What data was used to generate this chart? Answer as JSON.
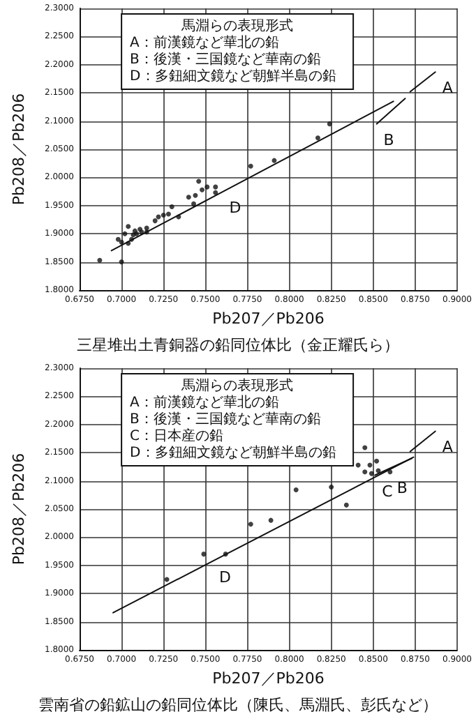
{
  "chart_data": [
    {
      "type": "scatter",
      "title": "三星堆出土青銅器の鉛同位体比（金正耀氏ら）",
      "xlabel": "Pb207／Pb206",
      "ylabel": "Pb208／Pb206",
      "grid": true,
      "line_style": "solid",
      "xlim": [
        0.675,
        0.9
      ],
      "ylim": [
        1.8,
        2.3
      ],
      "xticks": [
        {
          "value": 0.675,
          "label": "0.6750"
        },
        {
          "value": 0.7,
          "label": "0.7000"
        },
        {
          "value": 0.725,
          "label": "0.7250"
        },
        {
          "value": 0.75,
          "label": "0.7500"
        },
        {
          "value": 0.775,
          "label": "0.7750"
        },
        {
          "value": 0.8,
          "label": "0.8000"
        },
        {
          "value": 0.825,
          "label": "0.8250"
        },
        {
          "value": 0.85,
          "label": "0.8500"
        },
        {
          "value": 0.875,
          "label": "0.8750"
        },
        {
          "value": 0.9,
          "label": "0.9000"
        }
      ],
      "yticks": [
        {
          "value": 1.8,
          "label": "1.8000"
        },
        {
          "value": 1.85,
          "label": "1.8500"
        },
        {
          "value": 1.9,
          "label": "1.9000"
        },
        {
          "value": 1.95,
          "label": "1.9500"
        },
        {
          "value": 2.0,
          "label": "2.0000"
        },
        {
          "value": 2.05,
          "label": "2.0500"
        },
        {
          "value": 2.1,
          "label": "2.1000"
        },
        {
          "value": 2.15,
          "label": "2.1500"
        },
        {
          "value": 2.2,
          "label": "2.2000"
        },
        {
          "value": 2.25,
          "label": "2.2500"
        },
        {
          "value": 2.3,
          "label": "2.3000"
        }
      ],
      "series": [
        {
          "color": "#111111",
          "marker": "circle",
          "x": [
            0.687,
            0.7,
            0.698,
            0.7,
            0.702,
            0.704,
            0.707,
            0.708,
            0.709,
            0.711,
            0.712,
            0.704,
            0.706,
            0.715,
            0.715,
            0.72,
            0.722,
            0.725,
            0.728,
            0.73,
            0.734,
            0.74,
            0.743,
            0.744,
            0.746,
            0.748,
            0.751,
            0.756,
            0.756,
            0.777,
            0.791,
            0.817,
            0.824
          ],
          "values": [
            1.853,
            1.85,
            1.89,
            1.885,
            1.9,
            1.913,
            1.898,
            1.905,
            1.9,
            1.908,
            1.903,
            1.883,
            1.89,
            1.91,
            1.903,
            1.923,
            1.93,
            1.933,
            1.935,
            1.948,
            1.93,
            1.965,
            1.953,
            1.968,
            1.993,
            1.978,
            1.983,
            1.983,
            1.973,
            2.02,
            2.03,
            2.07,
            2.095
          ]
        },
        {
          "type": "line",
          "color": "#111111",
          "marker": "none",
          "x": [
            0.694,
            0.76,
            0.862
          ],
          "values": [
            1.87,
            1.974,
            2.135
          ]
        },
        {
          "type": "line",
          "color": "#111111",
          "marker": "none",
          "x": [
            0.872,
            0.887
          ],
          "values": [
            2.152,
            2.187
          ]
        },
        {
          "type": "line",
          "color": "#111111",
          "marker": "none",
          "x": [
            0.852,
            0.869
          ],
          "values": [
            2.095,
            2.14
          ]
        }
      ],
      "annotations": [
        "馬淵らの表現形式",
        "A：前漢鏡など華北の鉛",
        "B：後漢・三国鏡など華南の鉛",
        "D：多鈕細文鏡など朝鮮半島の鉛",
        {
          "text": "A",
          "x": 0.887,
          "y": 2.187
        },
        {
          "text": "B",
          "x": 0.852,
          "y": 2.095
        },
        {
          "text": "D",
          "x": 0.76,
          "y": 1.974
        }
      ]
    },
    {
      "type": "scatter",
      "title": "雲南省の鉛鉱山の鉛同位体比（陳氏、馬淵氏、彭氏など）",
      "xlabel": "Pb207／Pb206",
      "ylabel": "Pb208／Pb206",
      "grid": true,
      "line_style": "solid",
      "xlim": [
        0.675,
        0.9
      ],
      "ylim": [
        1.8,
        2.3
      ],
      "xticks": [
        {
          "value": 0.675,
          "label": "0.6750"
        },
        {
          "value": 0.7,
          "label": "0.7000"
        },
        {
          "value": 0.725,
          "label": "0.7250"
        },
        {
          "value": 0.75,
          "label": "0.7500"
        },
        {
          "value": 0.775,
          "label": "0.7750"
        },
        {
          "value": 0.8,
          "label": "0.8000"
        },
        {
          "value": 0.825,
          "label": "0.8250"
        },
        {
          "value": 0.85,
          "label": "0.8500"
        },
        {
          "value": 0.875,
          "label": "0.8750"
        },
        {
          "value": 0.9,
          "label": "0.9000"
        }
      ],
      "yticks": [
        {
          "value": 1.8,
          "label": "1.8000"
        },
        {
          "value": 1.85,
          "label": "1.8500"
        },
        {
          "value": 1.9,
          "label": "1.9000"
        },
        {
          "value": 1.95,
          "label": "1.9500"
        },
        {
          "value": 2.0,
          "label": "2.0000"
        },
        {
          "value": 2.05,
          "label": "2.0500"
        },
        {
          "value": 2.1,
          "label": "2.1000"
        },
        {
          "value": 2.15,
          "label": "2.1500"
        },
        {
          "value": 2.2,
          "label": "2.2000"
        },
        {
          "value": 2.25,
          "label": "2.2500"
        },
        {
          "value": 2.3,
          "label": "2.3000"
        }
      ],
      "series": [
        {
          "color": "#111111",
          "marker": "circle",
          "x": [
            0.727,
            0.749,
            0.762,
            0.777,
            0.789,
            0.804,
            0.825,
            0.834,
            0.845,
            0.841,
            0.848,
            0.852,
            0.845,
            0.853,
            0.86,
            0.849
          ],
          "values": [
            1.925,
            1.97,
            1.97,
            2.023,
            2.03,
            2.084,
            2.089,
            2.057,
            2.159,
            2.128,
            2.128,
            2.135,
            2.116,
            2.118,
            2.116,
            2.113
          ]
        },
        {
          "type": "line",
          "color": "#111111",
          "marker": "none",
          "x": [
            0.695,
            0.754,
            0.874
          ],
          "values": [
            1.866,
            1.957,
            2.142
          ]
        },
        {
          "type": "line",
          "color": "#111111",
          "marker": "none",
          "x": [
            0.872,
            0.887
          ],
          "values": [
            2.152,
            2.188
          ]
        },
        {
          "type": "line",
          "color": "#111111",
          "marker": "none",
          "x": [
            0.851,
            0.873
          ],
          "values": [
            2.11,
            2.14
          ]
        }
      ],
      "annotations": [
        "馬淵らの表現形式",
        "A：前漢鏡など華北の鉛",
        "B：後漢・三国鏡など華南の鉛",
        "C：日本産の鉛",
        "D：多鈕細文鏡など朝鮮半島の鉛",
        {
          "text": "A",
          "x": 0.887,
          "y": 2.188
        },
        {
          "text": "B",
          "x": 0.86,
          "y": 2.116
        },
        {
          "text": "C",
          "x": 0.851,
          "y": 2.11
        },
        {
          "text": "D",
          "x": 0.754,
          "y": 1.957
        }
      ]
    }
  ]
}
